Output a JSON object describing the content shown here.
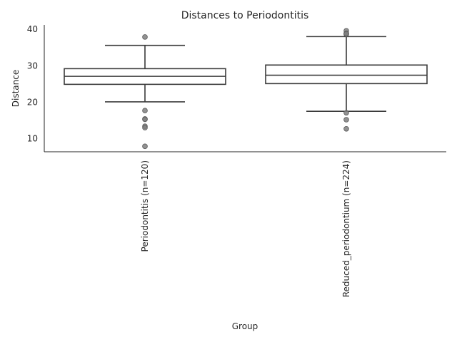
{
  "chart_data": {
    "type": "box",
    "title": "Distances to Periodontitis",
    "xlabel": "Group",
    "ylabel": "Distance",
    "ylim": [
      6.4,
      41.2
    ],
    "yticks": [
      10,
      20,
      30,
      40
    ],
    "grid": false,
    "categories": [
      "Periodontitis (n=120)",
      "Reduced_periodontium (n=224)"
    ],
    "boxes": [
      {
        "category": "Periodontitis (n=120)",
        "whisker_low": 20.1,
        "q1": 24.9,
        "median": 27.1,
        "q3": 29.2,
        "whisker_high": 35.6,
        "outliers": [
          37.9,
          17.7,
          15.4,
          15.3,
          13.4,
          13.0,
          7.9
        ]
      },
      {
        "category": "Reduced_periodontium (n=224)",
        "whisker_low": 17.5,
        "q1": 25.1,
        "median": 27.4,
        "q3": 30.2,
        "whisker_high": 38.0,
        "outliers": [
          39.6,
          38.9,
          38.6,
          38.8,
          17.1,
          15.2,
          12.7
        ]
      }
    ]
  }
}
